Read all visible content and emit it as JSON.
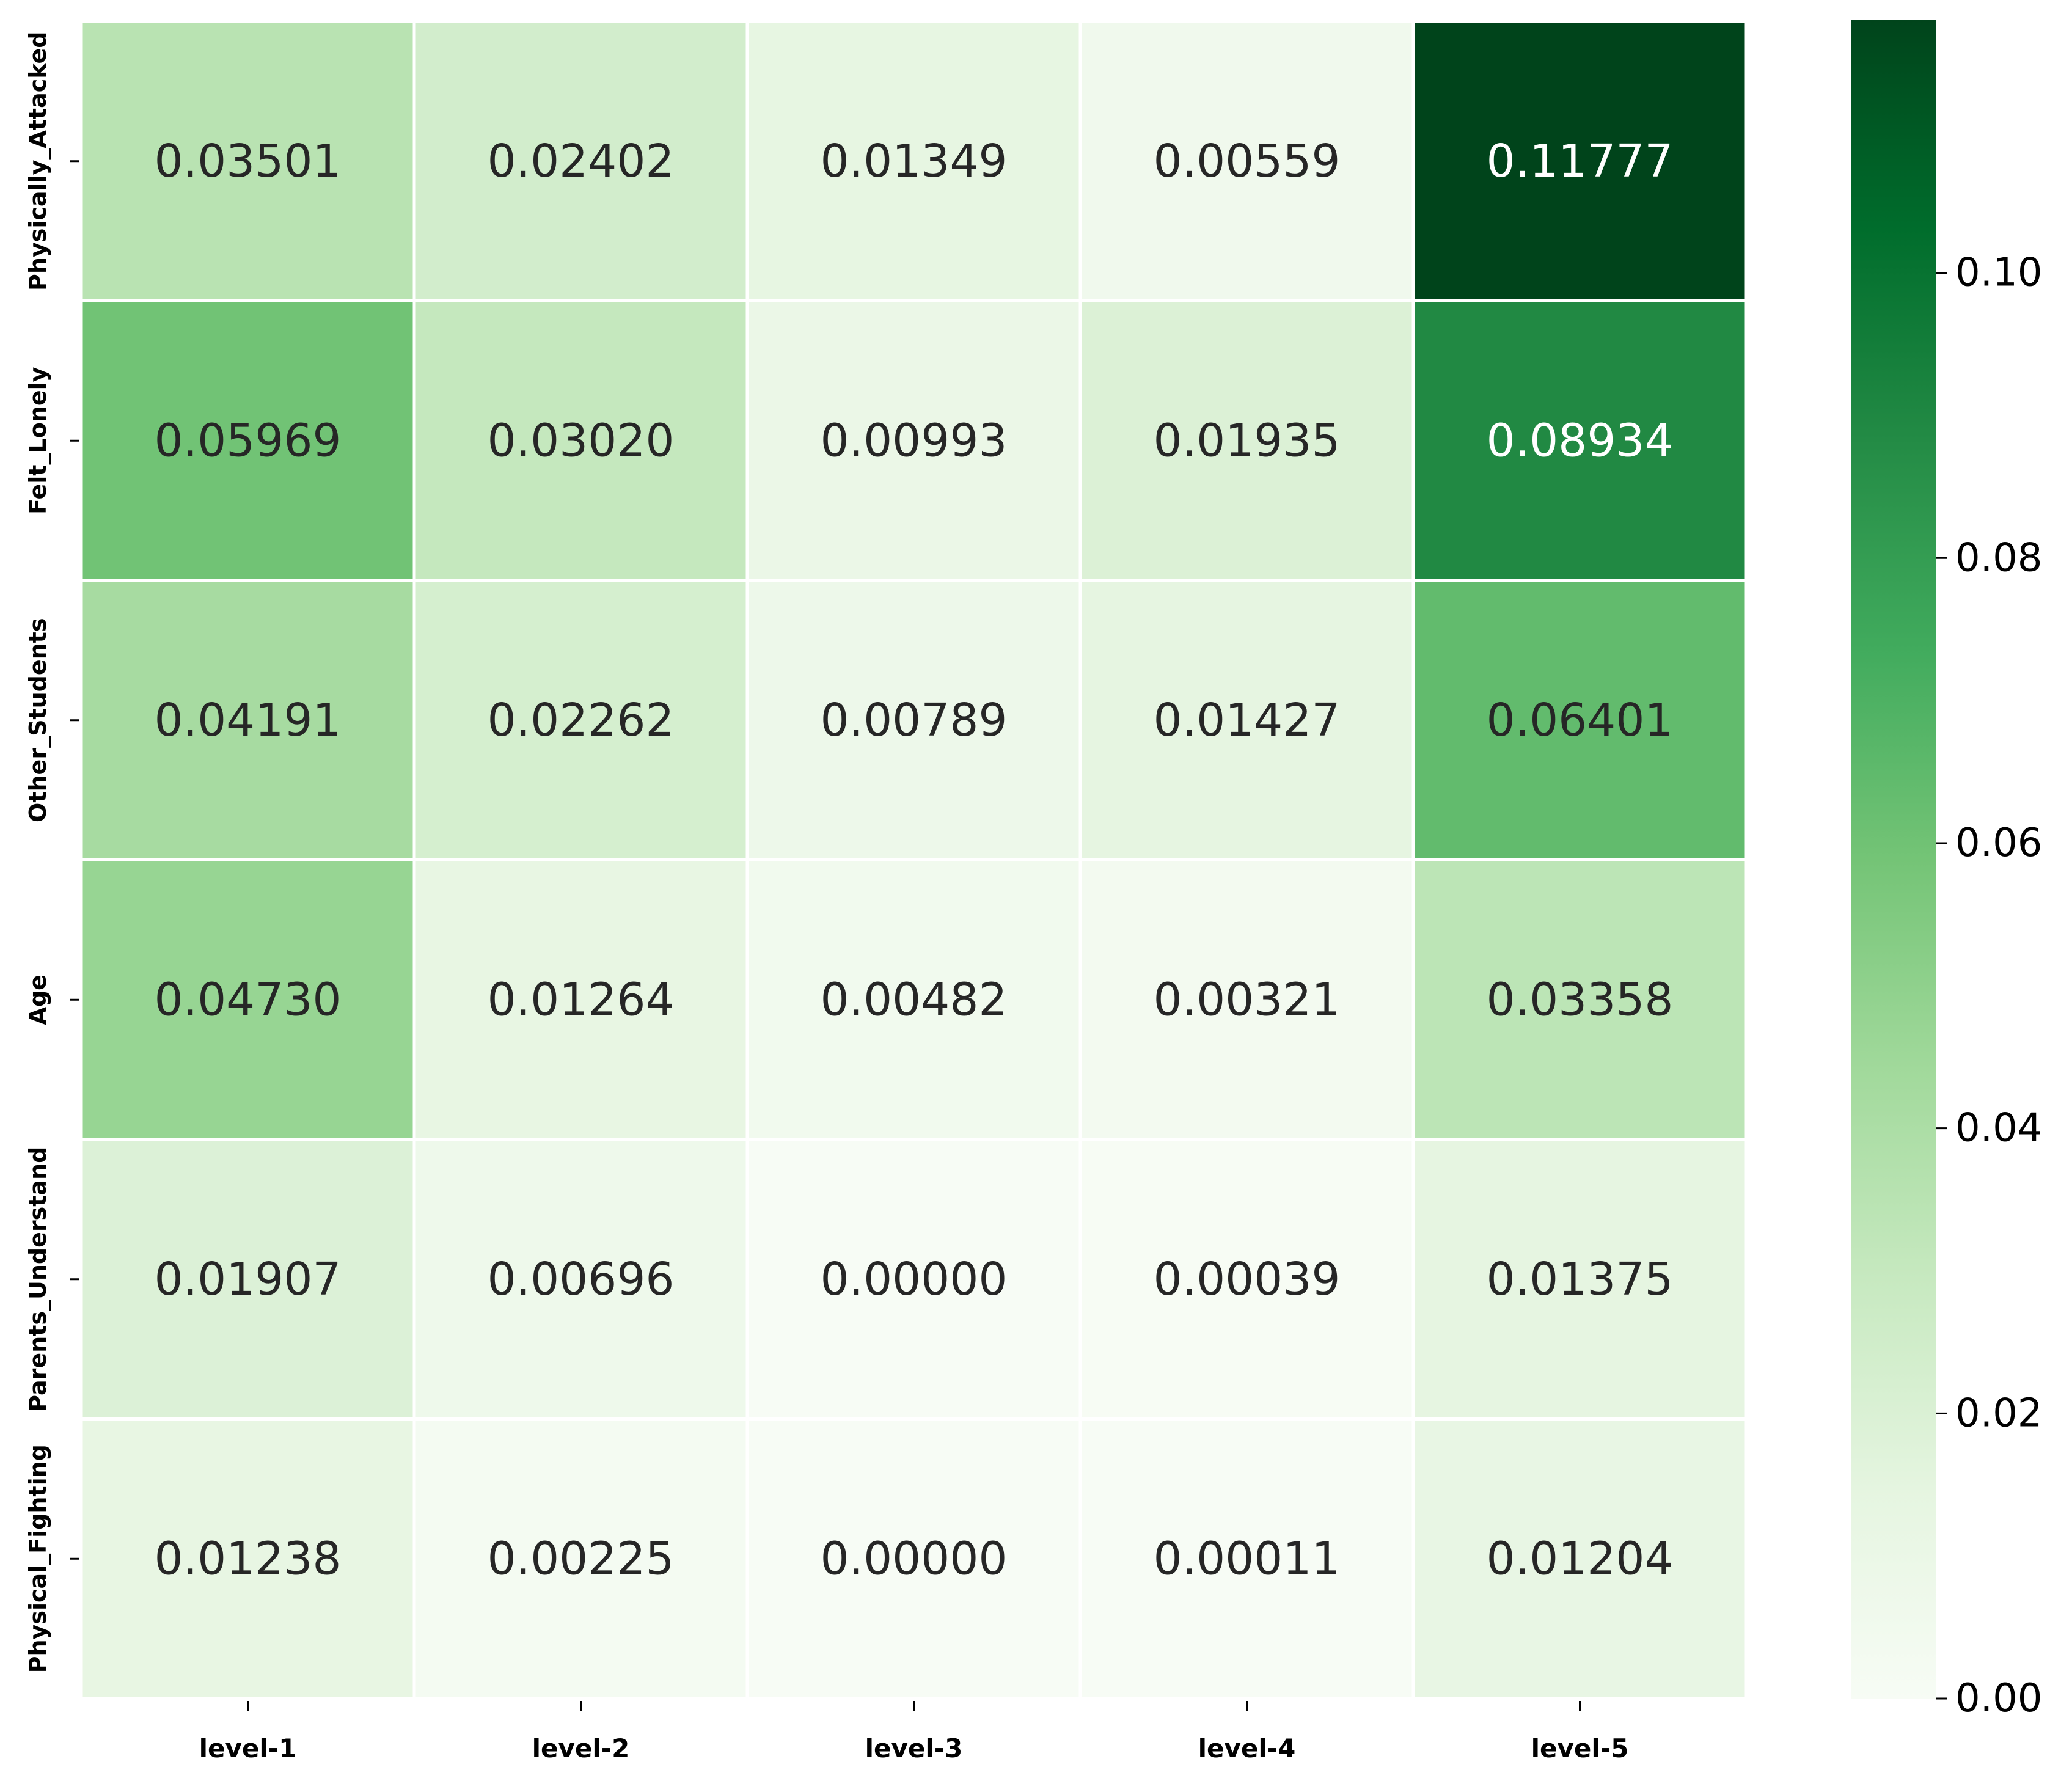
{
  "chart_data": {
    "type": "heatmap",
    "title": "",
    "xlabel": "",
    "ylabel": "",
    "columns": [
      "level-1",
      "level-2",
      "level-3",
      "level-4",
      "level-5"
    ],
    "rows": [
      "Physically_Attacked",
      "Felt_Lonely",
      "Other_Students",
      "Age",
      "Parents_Understand",
      "Physical_Fighting"
    ],
    "values": [
      [
        0.03501,
        0.02402,
        0.01349,
        0.00559,
        0.11777
      ],
      [
        0.05969,
        0.0302,
        0.00993,
        0.01935,
        0.08934
      ],
      [
        0.04191,
        0.02262,
        0.00789,
        0.01427,
        0.06401
      ],
      [
        0.0473,
        0.01264,
        0.00482,
        0.00321,
        0.03358
      ],
      [
        0.01907,
        0.00696,
        0.0,
        0.00039,
        0.01375
      ],
      [
        0.01238,
        0.00225,
        0.0,
        0.00011,
        0.01204
      ]
    ],
    "value_format_decimals": 5,
    "colormap": "Greens",
    "colorbar": {
      "min": 0.0,
      "max": 0.11777,
      "ticks": [
        0.0,
        0.02,
        0.04,
        0.06,
        0.08,
        0.1
      ],
      "tick_labels": [
        "0.00",
        "0.02",
        "0.04",
        "0.06",
        "0.08",
        "0.10"
      ]
    },
    "grid_line_color": "#ffffff",
    "light_text_color": "#ffffff",
    "dark_text_color": "#262626"
  }
}
